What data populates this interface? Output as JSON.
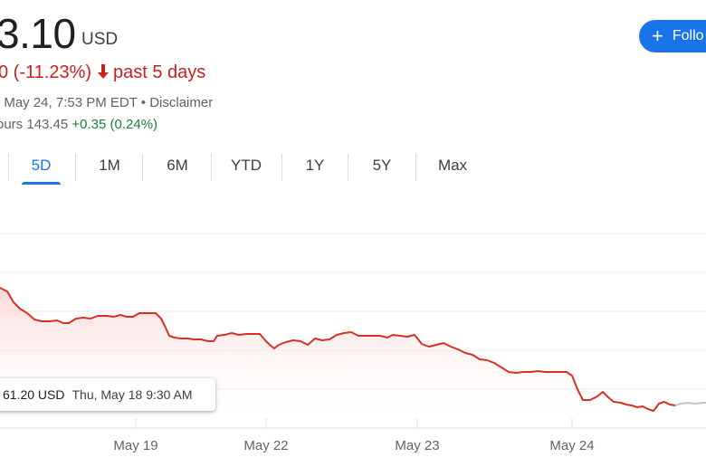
{
  "quote": {
    "price": "3.10",
    "currency": "USD",
    "change": "0 (-11.23%)",
    "period": "past 5 days",
    "timestamp_meta": ": May 24, 7:53 PM EDT • Disclaimer",
    "after_hours_label": "ours 143.45",
    "after_hours_change": "+0.35 (0.24%)"
  },
  "follow_button": {
    "label": "Follo"
  },
  "tabs": [
    "5D",
    "1M",
    "6M",
    "YTD",
    "1Y",
    "5Y",
    "Max"
  ],
  "active_tab": "5D",
  "tooltip": {
    "price": "61.20 USD",
    "date": "Thu, May 18 9:30 AM"
  },
  "colors": {
    "down": "#c5221f",
    "up": "#188038",
    "accent": "#1a73e8",
    "line": "#d93025",
    "extended": "#bdc1c6"
  },
  "chart_data": {
    "type": "area",
    "x_labels": [
      "May 19",
      "May 22",
      "May 23",
      "May 24"
    ],
    "trend": "down",
    "extended_hours_segment": true
  }
}
